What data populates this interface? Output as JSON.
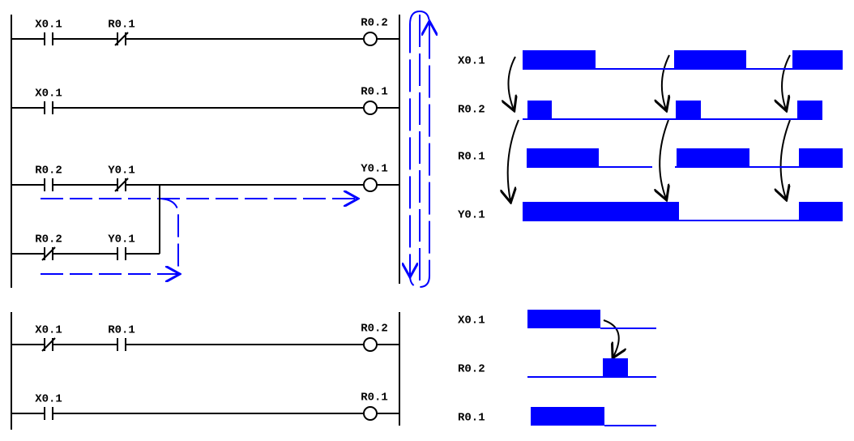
{
  "ladder_top": {
    "rungs": [
      {
        "contacts": [
          "X0.1",
          "R0.1"
        ],
        "coil": "R0.2"
      },
      {
        "contacts": [
          "X0.1"
        ],
        "coil": "R0.1"
      },
      {
        "contacts": [
          "R0.2",
          "Y0.1"
        ],
        "coil": "Y0.1"
      },
      {
        "contacts": [
          "R0.2",
          "Y0.1"
        ]
      }
    ]
  },
  "ladder_bottom": {
    "rungs": [
      {
        "contacts": [
          "X0.1",
          "R0.1"
        ],
        "coil": "R0.2"
      },
      {
        "contacts": [
          "X0.1"
        ],
        "coil": "R0.1"
      }
    ]
  },
  "timing_top": {
    "signals": [
      "X0.1",
      "R0.2",
      "R0.1",
      "Y0.1"
    ]
  },
  "timing_bottom": {
    "signals": [
      "X0.1",
      "R0.2",
      "R0.1"
    ]
  }
}
